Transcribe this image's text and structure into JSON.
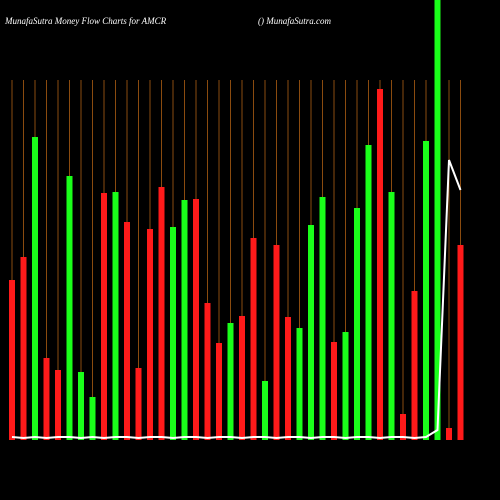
{
  "chart_data": {
    "type": "bar",
    "title": "MunafaSutra  Money Flow  Charts for AMCR",
    "subtitle": "() MunafaSutra.com",
    "background": "#000000",
    "grid_color": "#8a4b0f",
    "ylim": [
      0,
      440
    ],
    "values": [
      160,
      183,
      303,
      82,
      70,
      264,
      68,
      43,
      247,
      248,
      218,
      72,
      211,
      253,
      213,
      240,
      241,
      137,
      97,
      117,
      124,
      202,
      59,
      195,
      123,
      112,
      215,
      243,
      98,
      108,
      232,
      295,
      351,
      248,
      26,
      149,
      299,
      440,
      12,
      195
    ],
    "colors": [
      "#ff1a1a",
      "#ff1a1a",
      "#1aff1a",
      "#ff1a1a",
      "#ff1a1a",
      "#1aff1a",
      "#1aff1a",
      "#1aff1a",
      "#ff1a1a",
      "#1aff1a",
      "#ff1a1a",
      "#ff1a1a",
      "#ff1a1a",
      "#ff1a1a",
      "#1aff1a",
      "#1aff1a",
      "#ff1a1a",
      "#ff1a1a",
      "#ff1a1a",
      "#1aff1a",
      "#ff1a1a",
      "#ff1a1a",
      "#1aff1a",
      "#ff1a1a",
      "#ff1a1a",
      "#1aff1a",
      "#1aff1a",
      "#1aff1a",
      "#ff1a1a",
      "#1aff1a",
      "#1aff1a",
      "#1aff1a",
      "#ff1a1a",
      "#1aff1a",
      "#ff1a1a",
      "#ff1a1a",
      "#1aff1a",
      "#1aff1a",
      "#ff1a1a",
      "#ff1a1a"
    ],
    "line": {
      "color": "#ffffff",
      "values": [
        3,
        2,
        3,
        2,
        3,
        3,
        2,
        3,
        2,
        3,
        3,
        2,
        3,
        3,
        2,
        3,
        3,
        2,
        3,
        3,
        2,
        3,
        3,
        2,
        3,
        3,
        2,
        3,
        3,
        2,
        3,
        3,
        2,
        3,
        3,
        2,
        3,
        10,
        280,
        250
      ]
    }
  }
}
